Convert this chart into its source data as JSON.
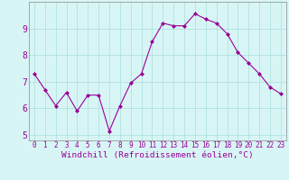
{
  "x": [
    0,
    1,
    2,
    3,
    4,
    5,
    6,
    7,
    8,
    9,
    10,
    11,
    12,
    13,
    14,
    15,
    16,
    17,
    18,
    19,
    20,
    21,
    22,
    23
  ],
  "y": [
    7.3,
    6.7,
    6.1,
    6.6,
    5.9,
    6.5,
    6.5,
    5.15,
    6.1,
    6.95,
    7.3,
    8.5,
    9.2,
    9.1,
    9.1,
    9.55,
    9.35,
    9.2,
    8.8,
    8.1,
    7.7,
    7.3,
    6.8,
    6.55
  ],
  "line_color": "#990099",
  "marker": "D",
  "marker_size": 2.0,
  "bg_color": "#d8f5f5",
  "grid_color": "#b0e0e0",
  "xlabel": "Windchill (Refroidissement éolien,°C)",
  "xlabel_color": "#990099",
  "tick_color": "#990099",
  "xlim": [
    -0.5,
    23.5
  ],
  "ylim": [
    4.8,
    10.0
  ],
  "yticks": [
    5,
    6,
    7,
    8,
    9
  ],
  "xticks": [
    0,
    1,
    2,
    3,
    4,
    5,
    6,
    7,
    8,
    9,
    10,
    11,
    12,
    13,
    14,
    15,
    16,
    17,
    18,
    19,
    20,
    21,
    22,
    23
  ],
  "xtick_labels": [
    "0",
    "1",
    "2",
    "3",
    "4",
    "5",
    "6",
    "7",
    "8",
    "9",
    "10",
    "11",
    "12",
    "13",
    "14",
    "15",
    "16",
    "17",
    "18",
    "19",
    "20",
    "21",
    "22",
    "23"
  ],
  "tick_fontsize": 5.5,
  "xlabel_fontsize": 6.8
}
